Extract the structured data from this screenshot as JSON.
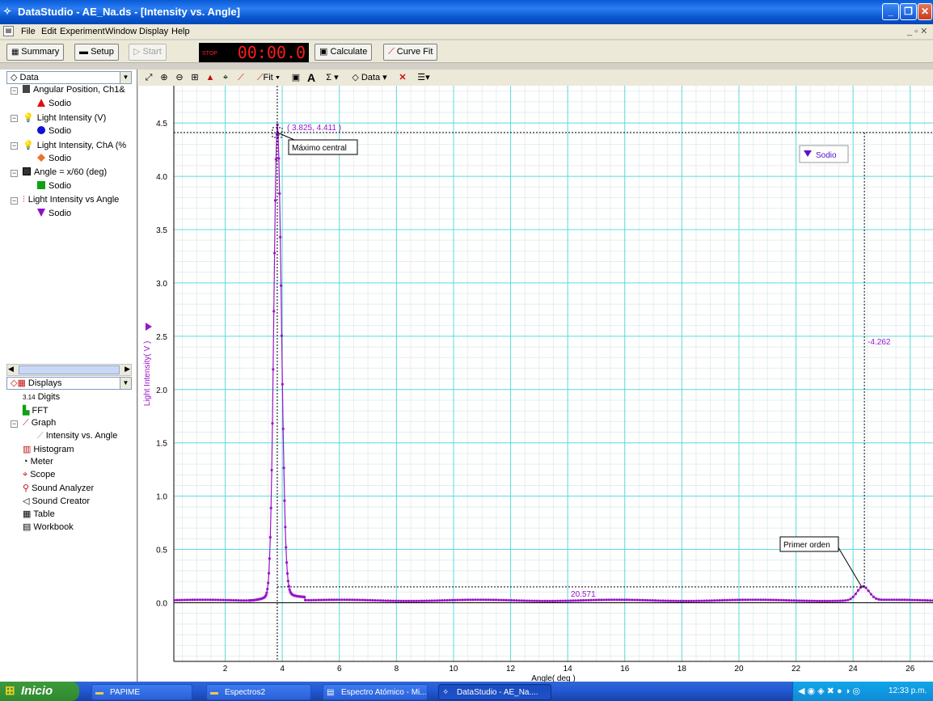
{
  "window": {
    "title": "DataStudio - AE_Na.ds - [Intensity vs. Angle]"
  },
  "menu": [
    "File",
    "Edit",
    "Experiment",
    "Window",
    "Display",
    "Help"
  ],
  "toolbar": {
    "summary": "Summary",
    "setup": "Setup",
    "start": "Start",
    "timer_label": "STOP",
    "timer": "00:00.0",
    "calculate": "Calculate",
    "curve_fit": "Curve Fit"
  },
  "graph_toolbar": {
    "fit": "Fit",
    "text_tool": "A",
    "sigma": "Σ",
    "data": "Data"
  },
  "data_panel": {
    "header": "Data",
    "items": [
      {
        "label": "Angular Position, Ch1&",
        "child": "Sodio",
        "color": "#e01010",
        "shape": "triangle"
      },
      {
        "label": "Light Intensity (V)",
        "child": "Sodio",
        "color": "#1010d8",
        "shape": "circle"
      },
      {
        "label": "Light Intensity, ChA (%",
        "child": "Sodio",
        "color": "#f07030",
        "shape": "diamond"
      },
      {
        "label": "Angle = x/60 (deg)",
        "child": "Sodio",
        "color": "#10a010",
        "shape": "square"
      },
      {
        "label": "Light Intensity vs Angle",
        "child": "Sodio",
        "color": "#8a10c8",
        "shape": "tri-down"
      }
    ]
  },
  "displays_panel": {
    "header": "Displays",
    "items": [
      "Digits",
      "FFT",
      "Graph",
      "Intensity vs. Angle",
      "Histogram",
      "Meter",
      "Scope",
      "Sound Analyzer",
      "Sound Creator",
      "Table",
      "Workbook"
    ]
  },
  "chart_data": {
    "type": "scatter",
    "xlabel": "Angle( deg )",
    "ylabel": "Light Intensity( V )",
    "xlim": [
      0.2,
      26.8
    ],
    "ylim": [
      -0.55,
      4.85
    ],
    "xticks": [
      2,
      4,
      6,
      8,
      10,
      12,
      14,
      16,
      18,
      20,
      22,
      24,
      26
    ],
    "yticks": [
      0.0,
      0.5,
      1.0,
      1.5,
      2.0,
      2.5,
      3.0,
      3.5,
      4.0,
      4.5
    ],
    "series": [
      {
        "name": "Sodio",
        "color": "#9a14c8"
      }
    ],
    "peak_point": [
      3.825,
      4.411
    ],
    "peak_label": "( 3.825, 4.411 )",
    "cursor_x": 24.396,
    "cursor_y": 0.149,
    "delta_x_label": "20.571",
    "delta_y_label": "-4.262",
    "annotations": [
      {
        "text": "Máximo central",
        "x": 3.825,
        "y": 4.411
      },
      {
        "text": "Primer orden",
        "x": 24.3,
        "y": 0.15
      }
    ],
    "legend": {
      "text": "Sodio",
      "position": "top-right"
    },
    "grid": true
  },
  "taskbar": {
    "start": "Inicio",
    "tasks": [
      "PAPIME",
      "Espectros2",
      "Espectro Atómico - Mi...",
      "DataStudio - AE_Na...."
    ],
    "time": "12:33 p.m."
  }
}
